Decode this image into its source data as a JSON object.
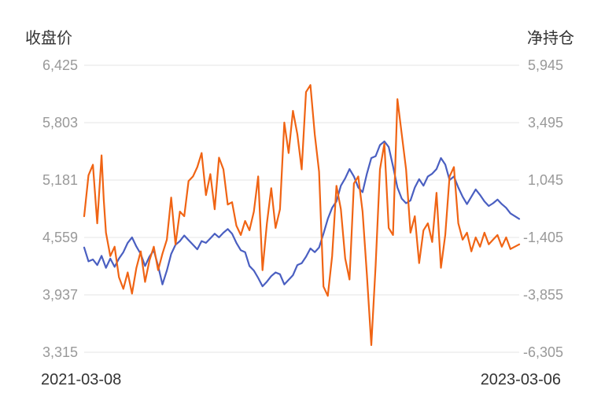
{
  "chart_data": {
    "type": "line",
    "left_axis": {
      "title": "收盘价",
      "ticks": [
        "6,425",
        "5,803",
        "5,181",
        "4,559",
        "3,937",
        "3,315"
      ],
      "range": [
        3315,
        6425
      ]
    },
    "right_axis": {
      "title": "净持仓",
      "ticks": [
        "5,945",
        "3,495",
        "1,045",
        "-1,405",
        "-3,855",
        "-6,305"
      ],
      "range": [
        -6305,
        5945
      ]
    },
    "x_labels": {
      "start": "2021-03-08",
      "end": "2023-03-06"
    },
    "grid": true,
    "series": [
      {
        "axis": "left",
        "color": "#4a5fc1",
        "points": [
          [
            0.0,
            4450
          ],
          [
            0.01,
            4300
          ],
          [
            0.02,
            4320
          ],
          [
            0.03,
            4260
          ],
          [
            0.04,
            4360
          ],
          [
            0.05,
            4230
          ],
          [
            0.06,
            4330
          ],
          [
            0.07,
            4240
          ],
          [
            0.08,
            4330
          ],
          [
            0.09,
            4400
          ],
          [
            0.1,
            4500
          ],
          [
            0.11,
            4560
          ],
          [
            0.12,
            4460
          ],
          [
            0.13,
            4380
          ],
          [
            0.14,
            4250
          ],
          [
            0.15,
            4350
          ],
          [
            0.16,
            4420
          ],
          [
            0.17,
            4250
          ],
          [
            0.18,
            4050
          ],
          [
            0.19,
            4200
          ],
          [
            0.2,
            4380
          ],
          [
            0.21,
            4480
          ],
          [
            0.22,
            4520
          ],
          [
            0.23,
            4580
          ],
          [
            0.24,
            4530
          ],
          [
            0.25,
            4480
          ],
          [
            0.26,
            4430
          ],
          [
            0.27,
            4520
          ],
          [
            0.28,
            4500
          ],
          [
            0.29,
            4550
          ],
          [
            0.3,
            4600
          ],
          [
            0.31,
            4560
          ],
          [
            0.32,
            4610
          ],
          [
            0.33,
            4650
          ],
          [
            0.34,
            4600
          ],
          [
            0.35,
            4500
          ],
          [
            0.36,
            4420
          ],
          [
            0.37,
            4400
          ],
          [
            0.38,
            4250
          ],
          [
            0.39,
            4200
          ],
          [
            0.4,
            4120
          ],
          [
            0.41,
            4030
          ],
          [
            0.42,
            4080
          ],
          [
            0.43,
            4140
          ],
          [
            0.44,
            4180
          ],
          [
            0.45,
            4160
          ],
          [
            0.46,
            4050
          ],
          [
            0.47,
            4100
          ],
          [
            0.48,
            4150
          ],
          [
            0.49,
            4260
          ],
          [
            0.5,
            4280
          ],
          [
            0.51,
            4350
          ],
          [
            0.52,
            4440
          ],
          [
            0.53,
            4400
          ],
          [
            0.54,
            4450
          ],
          [
            0.55,
            4600
          ],
          [
            0.56,
            4760
          ],
          [
            0.57,
            4880
          ],
          [
            0.58,
            4950
          ],
          [
            0.59,
            5120
          ],
          [
            0.6,
            5200
          ],
          [
            0.61,
            5300
          ],
          [
            0.62,
            5220
          ],
          [
            0.63,
            5100
          ],
          [
            0.64,
            5050
          ],
          [
            0.65,
            5250
          ],
          [
            0.66,
            5420
          ],
          [
            0.67,
            5440
          ],
          [
            0.68,
            5560
          ],
          [
            0.69,
            5600
          ],
          [
            0.7,
            5540
          ],
          [
            0.71,
            5330
          ],
          [
            0.72,
            5100
          ],
          [
            0.73,
            4980
          ],
          [
            0.74,
            4930
          ],
          [
            0.75,
            4960
          ],
          [
            0.76,
            5100
          ],
          [
            0.77,
            5190
          ],
          [
            0.78,
            5120
          ],
          [
            0.79,
            5220
          ],
          [
            0.8,
            5250
          ],
          [
            0.81,
            5300
          ],
          [
            0.82,
            5420
          ],
          [
            0.83,
            5350
          ],
          [
            0.84,
            5180
          ],
          [
            0.85,
            5220
          ],
          [
            0.86,
            5100
          ],
          [
            0.87,
            5000
          ],
          [
            0.88,
            4920
          ],
          [
            0.89,
            5000
          ],
          [
            0.9,
            5080
          ],
          [
            0.91,
            5020
          ],
          [
            0.92,
            4950
          ],
          [
            0.93,
            4900
          ],
          [
            0.94,
            4930
          ],
          [
            0.95,
            4970
          ],
          [
            0.96,
            4920
          ],
          [
            0.97,
            4880
          ],
          [
            0.98,
            4820
          ],
          [
            0.99,
            4790
          ],
          [
            1.0,
            4760
          ]
        ]
      },
      {
        "axis": "right",
        "color": "#f06414",
        "points": [
          [
            0.0,
            -500
          ],
          [
            0.01,
            1250
          ],
          [
            0.02,
            1700
          ],
          [
            0.03,
            -800
          ],
          [
            0.04,
            2100
          ],
          [
            0.045,
            200
          ],
          [
            0.05,
            -1200
          ],
          [
            0.06,
            -2200
          ],
          [
            0.07,
            -1800
          ],
          [
            0.08,
            -3100
          ],
          [
            0.09,
            -3600
          ],
          [
            0.1,
            -2900
          ],
          [
            0.11,
            -3800
          ],
          [
            0.12,
            -2700
          ],
          [
            0.13,
            -2000
          ],
          [
            0.14,
            -3300
          ],
          [
            0.15,
            -2400
          ],
          [
            0.16,
            -1800
          ],
          [
            0.17,
            -2800
          ],
          [
            0.18,
            -2100
          ],
          [
            0.19,
            -1500
          ],
          [
            0.2,
            300
          ],
          [
            0.21,
            -1700
          ],
          [
            0.22,
            -300
          ],
          [
            0.23,
            -500
          ],
          [
            0.24,
            1000
          ],
          [
            0.25,
            1200
          ],
          [
            0.26,
            1600
          ],
          [
            0.27,
            2200
          ],
          [
            0.28,
            400
          ],
          [
            0.29,
            1300
          ],
          [
            0.3,
            -200
          ],
          [
            0.31,
            2000
          ],
          [
            0.32,
            1500
          ],
          [
            0.33,
            0
          ],
          [
            0.34,
            100
          ],
          [
            0.35,
            -900
          ],
          [
            0.36,
            -1300
          ],
          [
            0.37,
            -700
          ],
          [
            0.38,
            -1100
          ],
          [
            0.39,
            -300
          ],
          [
            0.4,
            1200
          ],
          [
            0.41,
            -2800
          ],
          [
            0.42,
            -800
          ],
          [
            0.43,
            700
          ],
          [
            0.44,
            -1000
          ],
          [
            0.45,
            -200
          ],
          [
            0.46,
            3500
          ],
          [
            0.47,
            2200
          ],
          [
            0.48,
            4000
          ],
          [
            0.49,
            3000
          ],
          [
            0.5,
            1500
          ],
          [
            0.51,
            4800
          ],
          [
            0.52,
            5100
          ],
          [
            0.53,
            3000
          ],
          [
            0.54,
            1400
          ],
          [
            0.55,
            -3500
          ],
          [
            0.56,
            -3900
          ],
          [
            0.57,
            -2200
          ],
          [
            0.58,
            800
          ],
          [
            0.59,
            -200
          ],
          [
            0.6,
            -2300
          ],
          [
            0.61,
            -3200
          ],
          [
            0.62,
            900
          ],
          [
            0.63,
            1200
          ],
          [
            0.64,
            -300
          ],
          [
            0.65,
            -3000
          ],
          [
            0.66,
            -6000
          ],
          [
            0.67,
            -2600
          ],
          [
            0.68,
            1500
          ],
          [
            0.69,
            2600
          ],
          [
            0.7,
            -1000
          ],
          [
            0.71,
            -1300
          ],
          [
            0.72,
            4500
          ],
          [
            0.73,
            3000
          ],
          [
            0.74,
            1500
          ],
          [
            0.75,
            -1200
          ],
          [
            0.76,
            -500
          ],
          [
            0.77,
            -2500
          ],
          [
            0.78,
            -1100
          ],
          [
            0.79,
            -800
          ],
          [
            0.8,
            -1600
          ],
          [
            0.81,
            500
          ],
          [
            0.82,
            -2700
          ],
          [
            0.83,
            -1300
          ],
          [
            0.84,
            1200
          ],
          [
            0.85,
            1600
          ],
          [
            0.86,
            -800
          ],
          [
            0.87,
            -1500
          ],
          [
            0.88,
            -1200
          ],
          [
            0.89,
            -2000
          ],
          [
            0.9,
            -1400
          ],
          [
            0.91,
            -1800
          ],
          [
            0.92,
            -1200
          ],
          [
            0.93,
            -1700
          ],
          [
            0.94,
            -1500
          ],
          [
            0.95,
            -1300
          ],
          [
            0.96,
            -1800
          ],
          [
            0.97,
            -1400
          ],
          [
            0.98,
            -1900
          ],
          [
            1.0,
            -1700
          ]
        ]
      }
    ]
  }
}
